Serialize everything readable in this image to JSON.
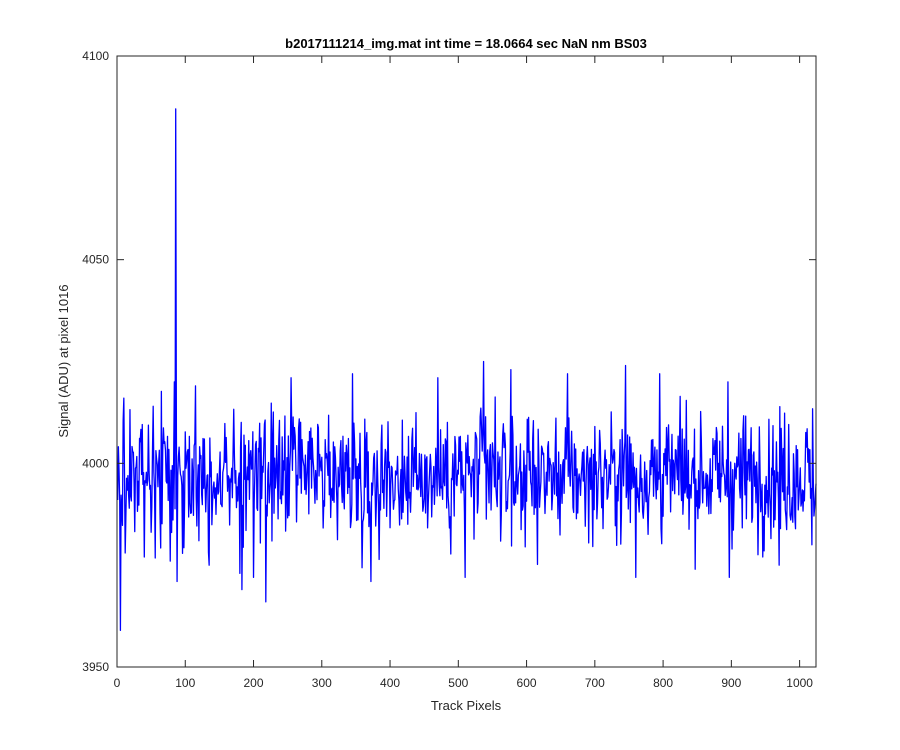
{
  "chart_data": {
    "type": "line",
    "title": "b2017111214_img.mat int time = 18.0664 sec  NaN nm BS03",
    "xlabel": "Track Pixels",
    "ylabel": "Signal (ADU) at pixel 1016",
    "xlim": [
      0,
      1024
    ],
    "ylim": [
      3950,
      4100
    ],
    "xticks": [
      0,
      100,
      200,
      300,
      400,
      500,
      600,
      700,
      800,
      900,
      1000
    ],
    "yticks": [
      3950,
      4000,
      4050,
      4100
    ],
    "grid": false,
    "series": [
      {
        "color": "#0000ff",
        "x_start": 1,
        "x_end": 1024,
        "mean": 3997,
        "noise_amplitude": 10,
        "notable_points": [
          {
            "x": 1,
            "y": 3991
          },
          {
            "x": 3,
            "y": 3998
          },
          {
            "x": 5,
            "y": 3959
          },
          {
            "x": 7,
            "y": 3989
          },
          {
            "x": 10,
            "y": 4016
          },
          {
            "x": 12,
            "y": 3978
          },
          {
            "x": 40,
            "y": 3977
          },
          {
            "x": 53,
            "y": 4014
          },
          {
            "x": 78,
            "y": 3976
          },
          {
            "x": 84,
            "y": 4020
          },
          {
            "x": 86,
            "y": 4087
          },
          {
            "x": 88,
            "y": 3971
          },
          {
            "x": 115,
            "y": 4019
          },
          {
            "x": 135,
            "y": 3975
          },
          {
            "x": 180,
            "y": 3973
          },
          {
            "x": 183,
            "y": 3969
          },
          {
            "x": 200,
            "y": 3972
          },
          {
            "x": 218,
            "y": 3966
          },
          {
            "x": 255,
            "y": 4021
          },
          {
            "x": 345,
            "y": 4022
          },
          {
            "x": 372,
            "y": 3971
          },
          {
            "x": 470,
            "y": 4021
          },
          {
            "x": 510,
            "y": 3972
          },
          {
            "x": 537,
            "y": 4025
          },
          {
            "x": 577,
            "y": 4023
          },
          {
            "x": 660,
            "y": 4022
          },
          {
            "x": 745,
            "y": 4024
          },
          {
            "x": 760,
            "y": 3972
          },
          {
            "x": 795,
            "y": 4022
          },
          {
            "x": 895,
            "y": 4020
          },
          {
            "x": 897,
            "y": 3972
          },
          {
            "x": 970,
            "y": 3975
          },
          {
            "x": 1010,
            "y": 4004
          },
          {
            "x": 1018,
            "y": 3980
          },
          {
            "x": 1024,
            "y": 3995
          }
        ]
      }
    ]
  }
}
